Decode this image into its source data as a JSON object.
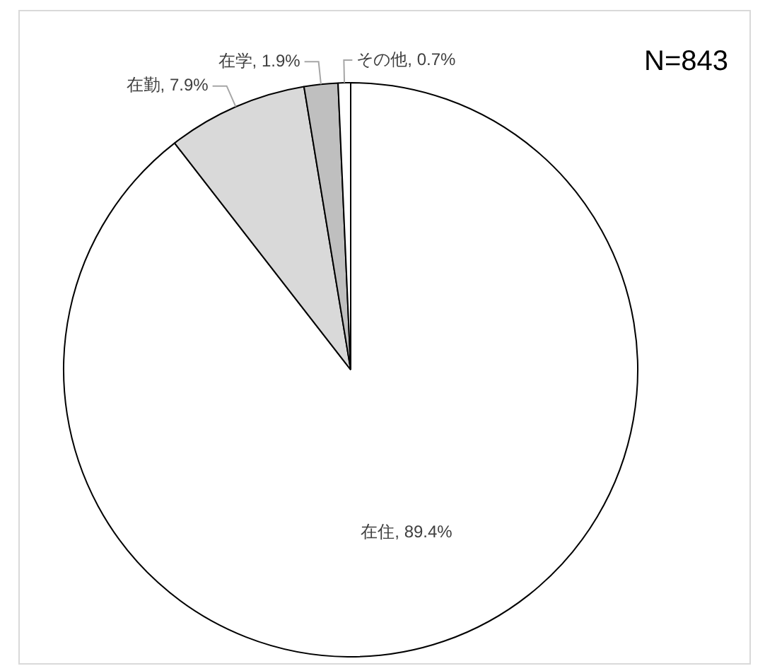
{
  "chart_data": {
    "type": "pie",
    "categories": [
      "在住",
      "在勤",
      "在学",
      "その他"
    ],
    "values": [
      89.4,
      7.9,
      1.9,
      0.7
    ],
    "colors": [
      "#ffffff",
      "#d9d9d9",
      "#bfbfbf",
      "#ffffff"
    ],
    "value_labels": [
      "89.4%",
      "7.9%",
      "1.9%",
      "0.7%"
    ],
    "annotations": [
      "N=843"
    ],
    "legend": false
  }
}
